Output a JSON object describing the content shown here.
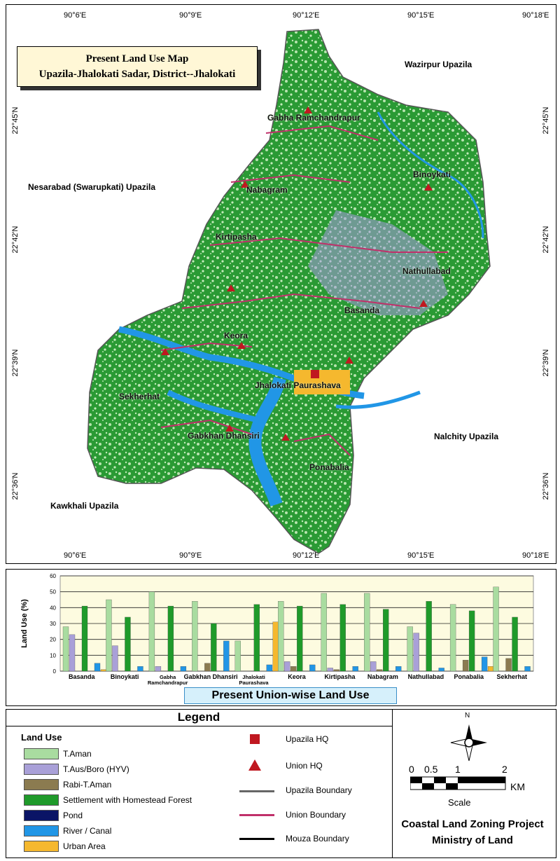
{
  "map": {
    "title_line1": "Present Land Use  Map",
    "title_line2": "Upazila-Jhalokati Sadar, District--Jhalokati",
    "top_coords": [
      "90°6'E",
      "90°9'E",
      "90°12'E",
      "90°15'E",
      "90°18'E"
    ],
    "bottom_coords": [
      "90°6'E",
      "90°9'E",
      "90°12'E",
      "90°15'E",
      "90°18'E"
    ],
    "left_coords": [
      "22°45'N",
      "22°42'N",
      "22°39'N",
      "22°36'N"
    ],
    "right_coords": [
      "22°45'N",
      "22°42'N",
      "22°39'N",
      "22°36'N"
    ],
    "neighbors": {
      "wazirpur": "Wazirpur Upazila",
      "nesarabad": "Nesarabad (Swarupkati) Upazila",
      "nalchity": "Nalchity Upazila",
      "kawkhali": "Kawkhali Upazila"
    },
    "unions": {
      "gabha": "Gabha Ramchandrapur",
      "binoykati": "Binoykati",
      "nabagram": "Nabagram",
      "kirtipasha": "Kirtipasha",
      "nathullabad": "Nathullabad",
      "basanda": "Basanda",
      "keora": "Keora",
      "paurashava": "Jhalokati Paurashava",
      "sekherhat": "Sekherhat",
      "gabkhan": "Gabkhan Dhansiri",
      "ponabalia": "Ponabalia"
    }
  },
  "chart_data": {
    "type": "bar",
    "title": "Present Union-wise Land Use",
    "ylabel": "Land Use (%)",
    "xlabel": "",
    "ylim": [
      0,
      60
    ],
    "yticks": [
      0,
      10,
      20,
      30,
      40,
      50,
      60
    ],
    "categories": [
      "Basanda",
      "Binoykati",
      "Gabha Ramchandrapur",
      "Gabkhan Dhansiri",
      "Jhalokati Paurashava",
      "Keora",
      "Kirtipasha",
      "Nabagram",
      "Nathullabad",
      "Ponabalia",
      "Sekherhat"
    ],
    "category_lines": [
      [
        "Basanda"
      ],
      [
        "Binoykati"
      ],
      [
        "Gabha",
        "Ramchandrapur"
      ],
      [
        "Gabkhan Dhansiri"
      ],
      [
        "Jhalokati",
        "Paurashava"
      ],
      [
        "Keora"
      ],
      [
        "Kirtipasha"
      ],
      [
        "Nabagram"
      ],
      [
        "Nathullabad"
      ],
      [
        "Ponabalia"
      ],
      [
        "Sekherhat"
      ]
    ],
    "series": [
      {
        "name": "T.Aman",
        "color": "#a9dca0",
        "values": [
          28,
          45,
          50,
          44,
          19,
          44,
          49,
          49,
          28,
          42,
          53
        ]
      },
      {
        "name": "T.Aus/Boro (HYV)",
        "color": "#a9a0d8",
        "values": [
          23,
          16,
          3,
          0,
          0,
          6,
          2,
          6,
          24,
          0,
          0
        ]
      },
      {
        "name": "Rabi-T.Aman",
        "color": "#8b7b50",
        "values": [
          0,
          0,
          0,
          5,
          0,
          3,
          1,
          1,
          0,
          7,
          8
        ]
      },
      {
        "name": "Settlement with Homestead Forest",
        "color": "#1f9a2a",
        "values": [
          41,
          34,
          41,
          30,
          42,
          41,
          42,
          39,
          44,
          38,
          34
        ]
      },
      {
        "name": "Pond",
        "color": "#0a1466",
        "values": [
          0,
          0,
          0,
          0,
          0,
          0,
          0,
          0,
          0,
          0,
          0
        ]
      },
      {
        "name": "River / Canal",
        "color": "#2196e6",
        "values": [
          5,
          3,
          3,
          19,
          4,
          4,
          3,
          3,
          2,
          9,
          3
        ]
      },
      {
        "name": "Urban Area",
        "color": "#f5b82e",
        "values": [
          1,
          0,
          0,
          0,
          31,
          0,
          0,
          0,
          0,
          3,
          0
        ]
      }
    ]
  },
  "legend": {
    "title": "Legend",
    "land_use_heading": "Land Use",
    "items": [
      {
        "label": "T.Aman",
        "color": "#a9dca0"
      },
      {
        "label": "T.Aus/Boro (HYV)",
        "color": "#a9a0d8"
      },
      {
        "label": "Rabi-T.Aman",
        "color": "#8b7b50"
      },
      {
        "label": "Settlement with Homestead Forest",
        "color": "#1f9a2a"
      },
      {
        "label": "Pond",
        "color": "#0a1466"
      },
      {
        "label": "River / Canal",
        "color": "#2196e6"
      },
      {
        "label": "Urban Area",
        "color": "#f5b82e"
      }
    ],
    "symbols": {
      "upazila_hq": "Upazila HQ",
      "union_hq": "Union HQ",
      "upazila_boundary": "Upazila Boundary",
      "union_boundary": "Union Boundary",
      "mouza_boundary": "Mouza Boundary"
    },
    "compass_letter": "N",
    "scale_ticks": [
      "0",
      "0.5",
      "1",
      "2"
    ],
    "scale_unit": "KM",
    "scale_label": "Scale",
    "project_line1": "Coastal Land Zoning Project",
    "project_line2": "Ministry of Land"
  }
}
